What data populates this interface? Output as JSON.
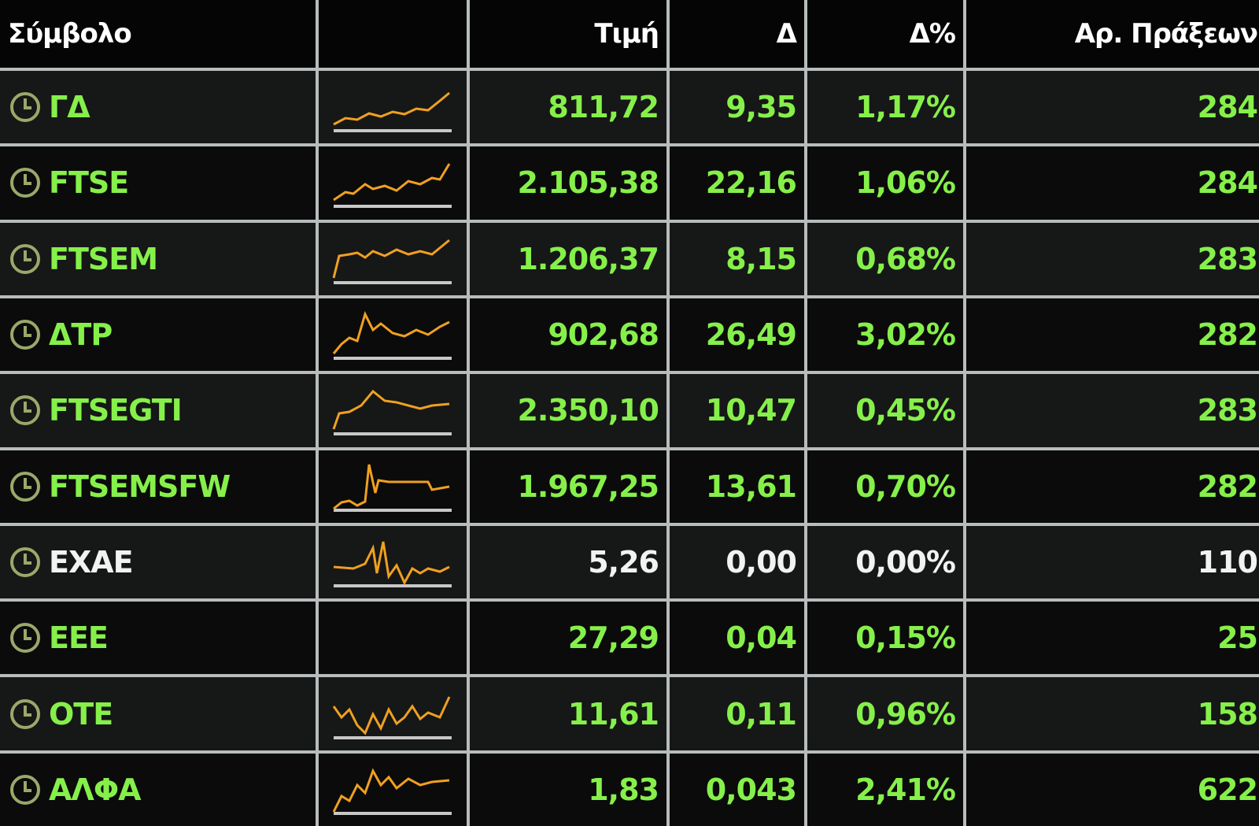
{
  "table": {
    "headers": [
      "Σύμβολο",
      "Τιμή",
      "Δ",
      "Δ%",
      "Αρ. Πράξεων"
    ],
    "rows": [
      [
        "ΓΔ",
        "811,72",
        "9,35",
        "1,17%",
        "284"
      ],
      [
        "FTSE",
        "2.105,38",
        "22,16",
        "1,06%",
        "284"
      ],
      [
        "FTSEM",
        "1.206,37",
        "8,15",
        "0,68%",
        "283"
      ],
      [
        "ΔΤΡ",
        "902,68",
        "26,49",
        "3,02%",
        "282"
      ],
      [
        "FTSEGTI",
        "2.350,10",
        "10,47",
        "0,45%",
        "283"
      ],
      [
        "FTSEMSFW",
        "1.967,25",
        "13,61",
        "0,70%",
        "282"
      ],
      [
        "EXAE",
        "5,26",
        "0,00",
        "0,00%",
        "110"
      ],
      [
        "EEE",
        "27,29",
        "0,04",
        "0,15%",
        "25"
      ],
      [
        "OTE",
        "11,61",
        "0,11",
        "0,96%",
        "158"
      ],
      [
        "ΑΛΦΑ",
        "1,83",
        "0,043",
        "2,41%",
        "622"
      ]
    ]
  }
}
